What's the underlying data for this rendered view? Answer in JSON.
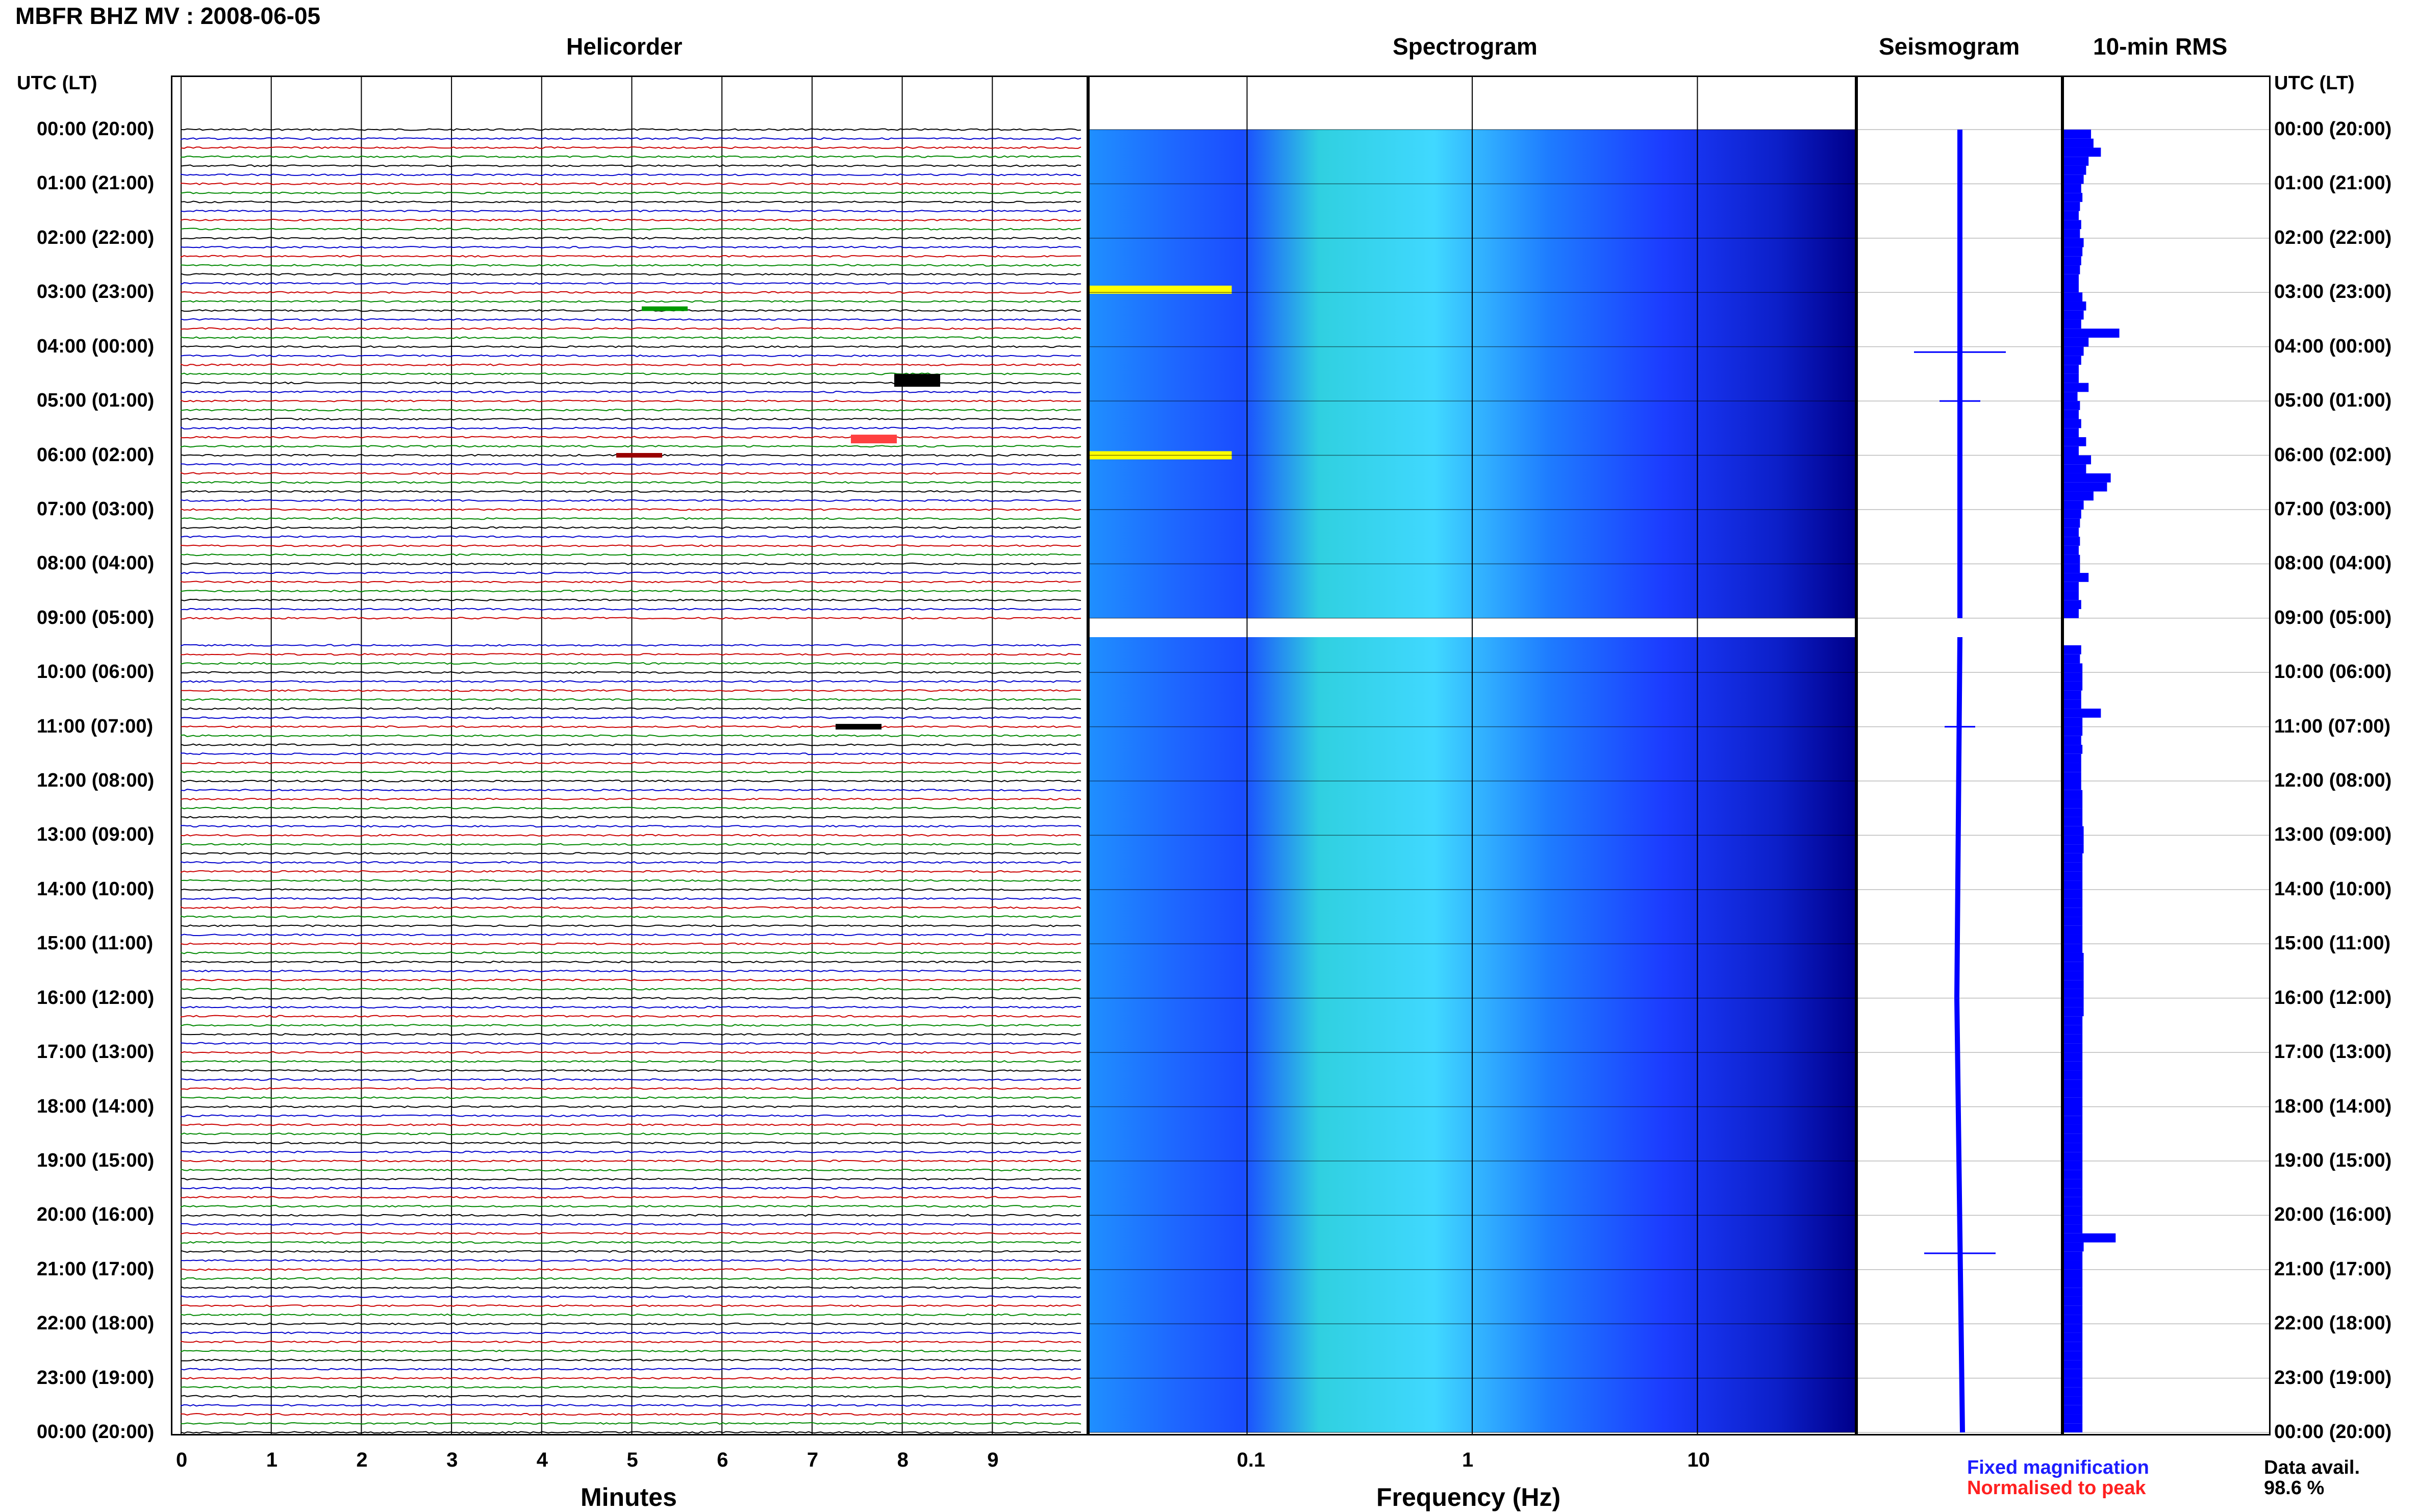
{
  "title": "MBFR BHZ MV : 2008-06-05",
  "utc_lt_label": "UTC (LT)",
  "panels": {
    "helicorder": "Helicorder",
    "spectrogram": "Spectrogram",
    "seismogram": "Seismogram",
    "rms": "10-min RMS"
  },
  "time_labels": [
    "00:00 (20:00)",
    "01:00 (21:00)",
    "02:00 (22:00)",
    "03:00 (23:00)",
    "04:00 (00:00)",
    "05:00 (01:00)",
    "06:00 (02:00)",
    "07:00 (03:00)",
    "08:00 (04:00)",
    "09:00 (05:00)",
    "10:00 (06:00)",
    "11:00 (07:00)",
    "12:00 (08:00)",
    "13:00 (09:00)",
    "14:00 (10:00)",
    "15:00 (11:00)",
    "16:00 (12:00)",
    "17:00 (13:00)",
    "18:00 (14:00)",
    "19:00 (15:00)",
    "20:00 (16:00)",
    "21:00 (17:00)",
    "22:00 (18:00)",
    "23:00 (19:00)",
    "00:00 (20:00)"
  ],
  "footer": {
    "fixed": "Fixed magnification",
    "normalised": "Normalised to peak",
    "avail_label": "Data avail.",
    "avail_value": "98.6 %"
  },
  "colors": {
    "trace_cycle": [
      "#000000",
      "#0000cc",
      "#cc0000",
      "#008800"
    ],
    "rms_bar": "#0000ff",
    "seismo_line": "#0000ff",
    "spectro_low": "#00008b",
    "spectro_mid": "#1e64ff",
    "spectro_high": "#40e0d0",
    "spectro_peak": "#ffff00"
  },
  "chart_data": {
    "type": "heatmap",
    "helicorder": {
      "xlabel": "Minutes",
      "x_ticks": [
        "0",
        "1",
        "2",
        "3",
        "4",
        "5",
        "6",
        "7",
        "8",
        "9"
      ],
      "xlim": [
        0,
        10
      ],
      "traces_per_hour": 6,
      "minutes_per_trace": 10,
      "gap": [
        "09:00",
        "09:20"
      ]
    },
    "spectrogram": {
      "xlabel": "Frequency (Hz)",
      "x_scale": "log",
      "xlim": [
        0.02,
        50
      ],
      "x_ticks": [
        "0.1",
        "1",
        "10"
      ]
    },
    "rms_10min": {
      "values": [
        0.22,
        0.24,
        0.3,
        0.2,
        0.18,
        0.16,
        0.14,
        0.15,
        0.13,
        0.12,
        0.14,
        0.13,
        0.16,
        0.15,
        0.14,
        0.13,
        0.12,
        0.12,
        0.15,
        0.18,
        0.16,
        0.14,
        0.45,
        0.2,
        0.16,
        0.14,
        0.12,
        0.12,
        0.2,
        0.11,
        0.13,
        0.12,
        0.14,
        0.12,
        0.18,
        0.12,
        0.22,
        0.18,
        0.38,
        0.35,
        0.24,
        0.16,
        0.14,
        0.13,
        0.12,
        0.13,
        0.12,
        0.13,
        0.13,
        0.2,
        0.12,
        0.12,
        0.14,
        0.12,
        0.15,
        0.13,
        0.2,
        0.14,
        0.13,
        0.15,
        0.15,
        0.15,
        0.14,
        0.14,
        0.3,
        0.15,
        0.15,
        0.14,
        0.15,
        0.14,
        0.14,
        0.14,
        0.14,
        0.15,
        0.15,
        0.15,
        0.15,
        0.16,
        0.16,
        0.16,
        0.15,
        0.15,
        0.15,
        0.15,
        0.15,
        0.15,
        0.15,
        0.15,
        0.15,
        0.15,
        0.15,
        0.16,
        0.16,
        0.16,
        0.16,
        0.16,
        0.16,
        0.16,
        0.15,
        0.15,
        0.15,
        0.15,
        0.15,
        0.15,
        0.15,
        0.15,
        0.15,
        0.15,
        0.15,
        0.15,
        0.15,
        0.15,
        0.15,
        0.15,
        0.15,
        0.15,
        0.15,
        0.15,
        0.15,
        0.15,
        0.15,
        0.15,
        0.42,
        0.16,
        0.15,
        0.15,
        0.15,
        0.15,
        0.15,
        0.15,
        0.15,
        0.15,
        0.15,
        0.15,
        0.15,
        0.15,
        0.15,
        0.15,
        0.15,
        0.15,
        0.15,
        0.15,
        0.15,
        0.15
      ]
    }
  }
}
